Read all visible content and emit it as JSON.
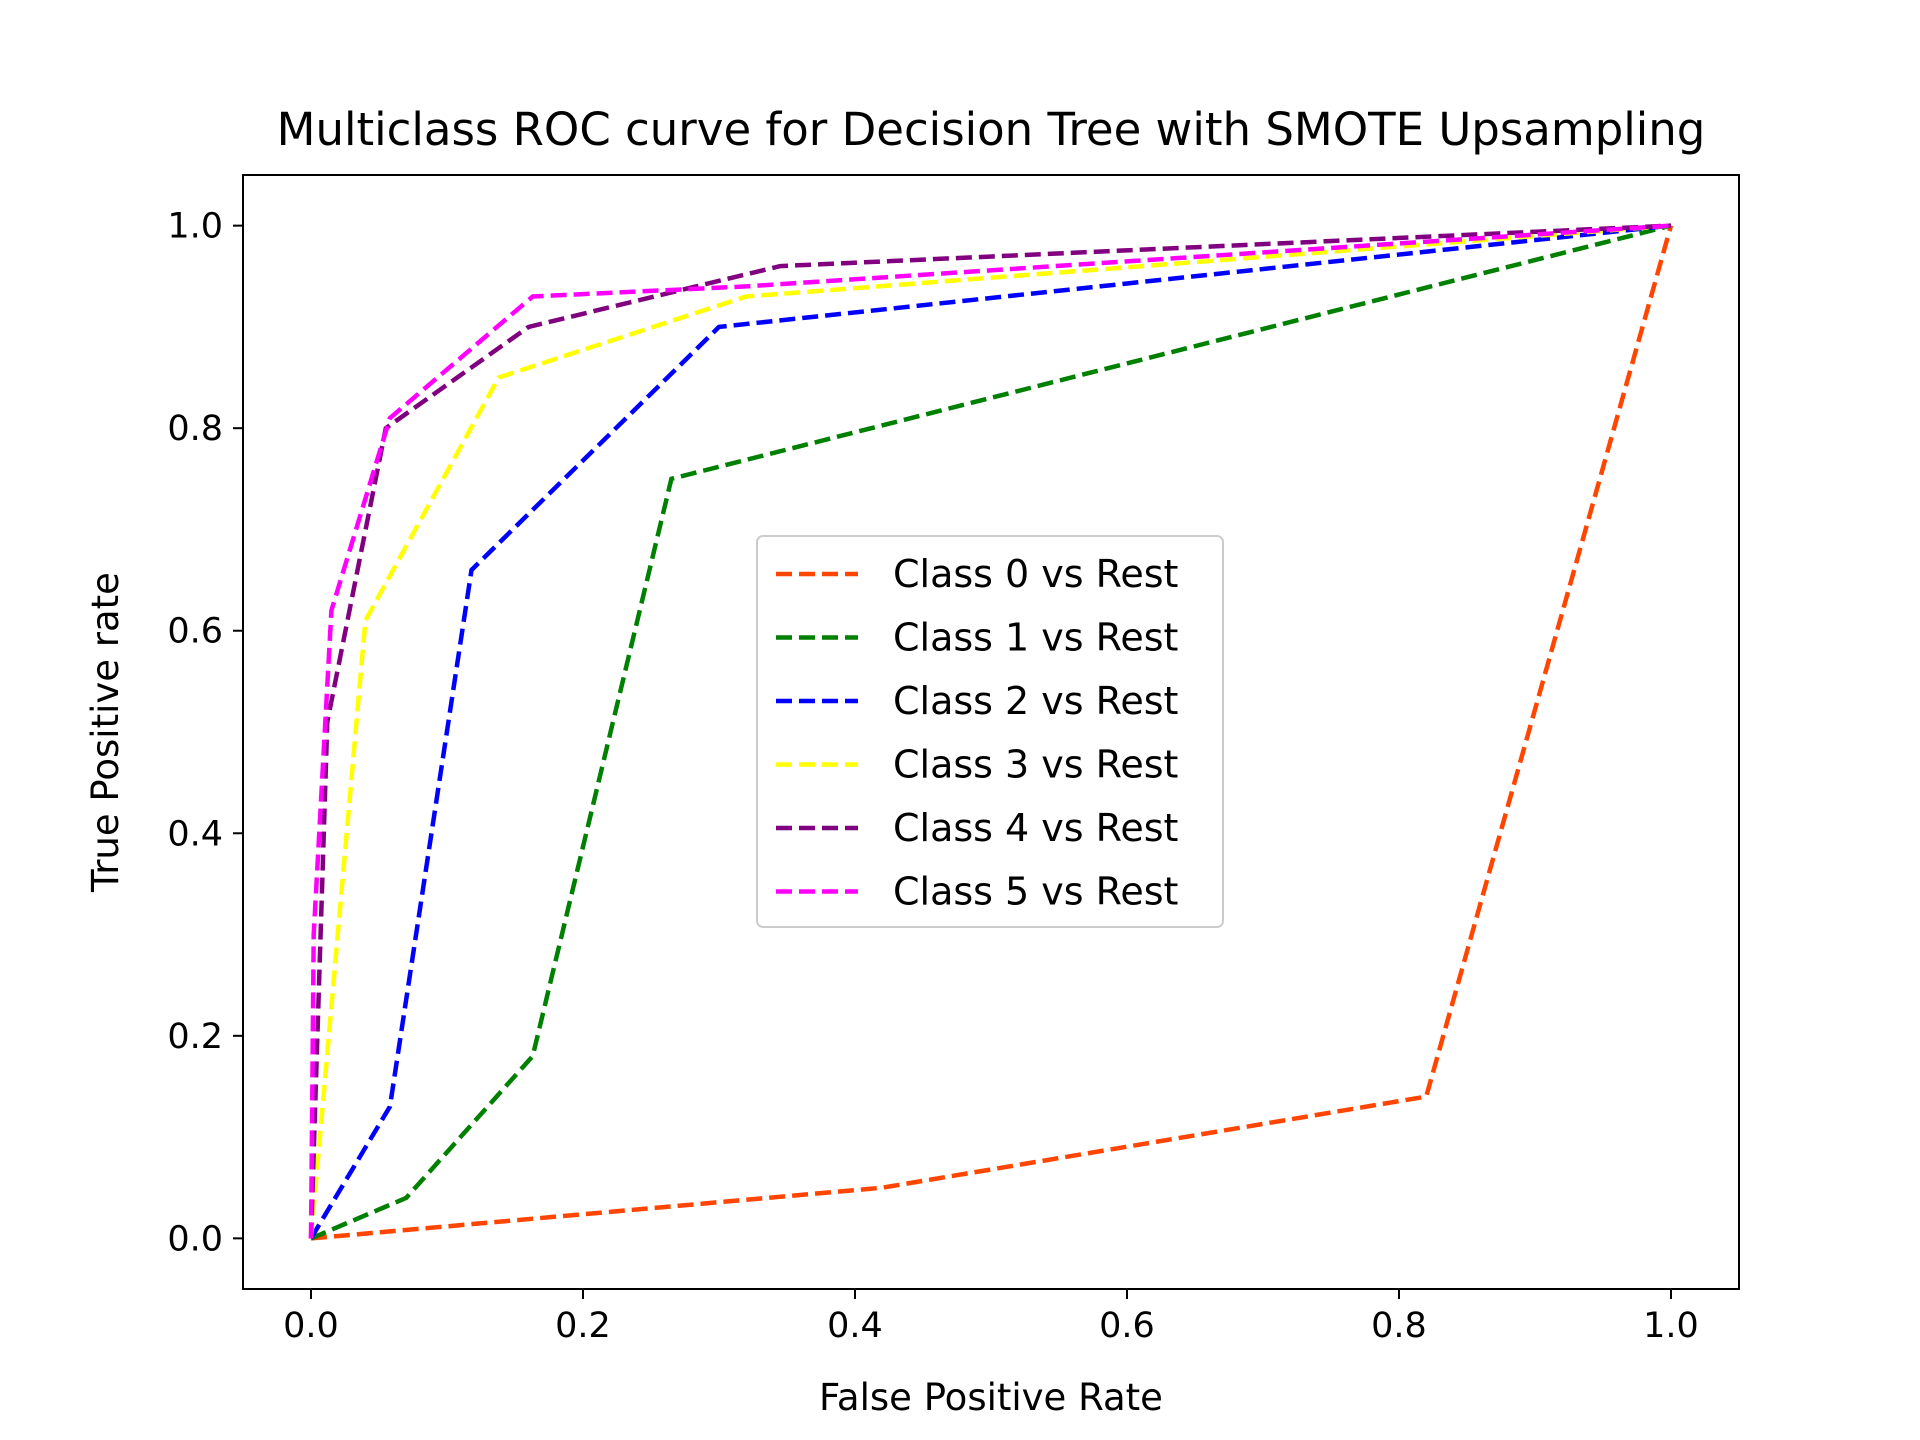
{
  "chart_data": {
    "type": "line",
    "title": "Multiclass ROC curve for Decision Tree with SMOTE Upsampling",
    "xlabel": "False Positive Rate",
    "ylabel": "True Positive rate",
    "xlim": [
      -0.05,
      1.05
    ],
    "ylim": [
      -0.05,
      1.05
    ],
    "xticks": [
      "0.0",
      "0.2",
      "0.4",
      "0.6",
      "0.8",
      "1.0"
    ],
    "yticks": [
      "0.0",
      "0.2",
      "0.4",
      "0.6",
      "0.8",
      "1.0"
    ],
    "grid": false,
    "legend_position": "center",
    "line_style": "dashed",
    "series": [
      {
        "name": "Class 0 vs Rest",
        "color": "#ff4500",
        "x": [
          0.0,
          0.42,
          0.82,
          1.0
        ],
        "y": [
          0.0,
          0.05,
          0.14,
          1.0
        ]
      },
      {
        "name": "Class 1 vs Rest",
        "color": "#008000",
        "x": [
          0.0,
          0.07,
          0.163,
          0.265,
          1.0
        ],
        "y": [
          0.0,
          0.04,
          0.18,
          0.75,
          1.0
        ]
      },
      {
        "name": "Class 2 vs Rest",
        "color": "#0000ff",
        "x": [
          0.0,
          0.058,
          0.118,
          0.3,
          1.0
        ],
        "y": [
          0.0,
          0.13,
          0.66,
          0.9,
          1.0
        ]
      },
      {
        "name": "Class 3 vs Rest",
        "color": "#ffff00",
        "x": [
          0.0,
          0.04,
          0.138,
          0.32,
          1.0
        ],
        "y": [
          0.0,
          0.61,
          0.85,
          0.93,
          1.0
        ]
      },
      {
        "name": "Class 4 vs Rest",
        "color": "#800080",
        "x": [
          0.0,
          0.012,
          0.055,
          0.16,
          0.345,
          1.0
        ],
        "y": [
          0.0,
          0.51,
          0.8,
          0.9,
          0.96,
          1.0
        ]
      },
      {
        "name": "Class 5 vs Rest",
        "color": "#ff00ff",
        "x": [
          0.0,
          0.002,
          0.015,
          0.058,
          0.163,
          0.32,
          1.0
        ],
        "y": [
          0.0,
          0.3,
          0.62,
          0.81,
          0.93,
          0.94,
          1.0
        ]
      }
    ]
  }
}
